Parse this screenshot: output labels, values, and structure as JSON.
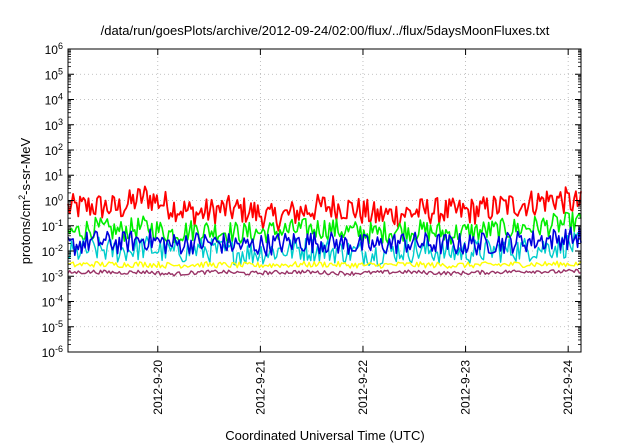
{
  "chart_data": {
    "type": "line",
    "title": "/data/run/goesPlots/archive/2012-09-24/02:00/flux/../flux/5daysMoonFluxes.txt",
    "xlabel": "Coordinated Universal Time (UTC)",
    "ylabel": {
      "prefix": "protons/cm",
      "sup": "2",
      "suffix": "-s-sr-MeV"
    },
    "y_scale": "log",
    "ylim": [
      1e-06,
      1000000.0
    ],
    "y_ticks": [
      {
        "exp": "-6"
      },
      {
        "exp": "-5"
      },
      {
        "exp": "-4"
      },
      {
        "exp": "-3"
      },
      {
        "exp": "-2"
      },
      {
        "exp": "-1"
      },
      {
        "exp": "0"
      },
      {
        "exp": "1"
      },
      {
        "exp": "2"
      },
      {
        "exp": "3"
      },
      {
        "exp": "4"
      },
      {
        "exp": "5"
      },
      {
        "exp": "6"
      }
    ],
    "y_tick_base": "10",
    "xlim": [
      "2012-09-19 03:00",
      "2012-09-24 03:00"
    ],
    "x_ticks": [
      "2012-9-20",
      "2012-9-21",
      "2012-9-22",
      "2012-9-23",
      "2012-9-24"
    ],
    "grid": true,
    "legend": "none",
    "series": [
      {
        "color": "#ff0000",
        "x": [
          "2012-09-19 03:00",
          "2012-09-19 09:00",
          "2012-09-19 15:00",
          "2012-09-19 21:00",
          "2012-09-20 03:00",
          "2012-09-20 09:00",
          "2012-09-20 15:00",
          "2012-09-20 21:00",
          "2012-09-21 03:00",
          "2012-09-21 09:00",
          "2012-09-21 15:00",
          "2012-09-21 21:00",
          "2012-09-22 03:00",
          "2012-09-22 09:00",
          "2012-09-22 15:00",
          "2012-09-22 21:00",
          "2012-09-23 03:00",
          "2012-09-23 09:00",
          "2012-09-23 15:00",
          "2012-09-23 21:00",
          "2012-09-24 03:00"
        ],
        "values": [
          0.5,
          0.6,
          0.5,
          1.5,
          0.6,
          0.3,
          0.45,
          0.4,
          0.2,
          0.35,
          0.6,
          0.5,
          0.25,
          0.3,
          0.4,
          0.35,
          0.4,
          0.6,
          0.8,
          1.2,
          0.7
        ]
      },
      {
        "color": "#00ee00",
        "x": [
          "2012-09-19 03:00",
          "2012-09-19 09:00",
          "2012-09-19 15:00",
          "2012-09-19 21:00",
          "2012-09-20 03:00",
          "2012-09-20 09:00",
          "2012-09-20 15:00",
          "2012-09-20 21:00",
          "2012-09-21 03:00",
          "2012-09-21 09:00",
          "2012-09-21 15:00",
          "2012-09-21 21:00",
          "2012-09-22 03:00",
          "2012-09-22 09:00",
          "2012-09-22 15:00",
          "2012-09-22 21:00",
          "2012-09-23 03:00",
          "2012-09-23 09:00",
          "2012-09-23 15:00",
          "2012-09-23 21:00",
          "2012-09-24 03:00"
        ],
        "values": [
          0.05,
          0.08,
          0.06,
          0.09,
          0.05,
          0.07,
          0.06,
          0.05,
          0.06,
          0.07,
          0.08,
          0.06,
          0.05,
          0.07,
          0.06,
          0.05,
          0.06,
          0.07,
          0.09,
          0.11,
          0.14
        ]
      },
      {
        "color": "#00cccc",
        "x": [
          "2012-09-19 03:00",
          "2012-09-19 09:00",
          "2012-09-19 15:00",
          "2012-09-19 21:00",
          "2012-09-20 03:00",
          "2012-09-20 09:00",
          "2012-09-20 15:00",
          "2012-09-20 21:00",
          "2012-09-21 03:00",
          "2012-09-21 09:00",
          "2012-09-21 15:00",
          "2012-09-21 21:00",
          "2012-09-22 03:00",
          "2012-09-22 09:00",
          "2012-09-22 15:00",
          "2012-09-22 21:00",
          "2012-09-23 03:00",
          "2012-09-23 09:00",
          "2012-09-23 15:00",
          "2012-09-23 21:00",
          "2012-09-24 03:00"
        ],
        "values": [
          0.008,
          0.012,
          0.01,
          0.014,
          0.009,
          0.011,
          0.01,
          0.008,
          0.01,
          0.012,
          0.011,
          0.009,
          0.008,
          0.011,
          0.01,
          0.009,
          0.01,
          0.011,
          0.012,
          0.015,
          0.018
        ]
      },
      {
        "color": "#0000dd",
        "x": [
          "2012-09-19 03:00",
          "2012-09-19 09:00",
          "2012-09-19 15:00",
          "2012-09-19 21:00",
          "2012-09-20 03:00",
          "2012-09-20 09:00",
          "2012-09-20 15:00",
          "2012-09-20 21:00",
          "2012-09-21 03:00",
          "2012-09-21 09:00",
          "2012-09-21 15:00",
          "2012-09-21 21:00",
          "2012-09-22 03:00",
          "2012-09-22 09:00",
          "2012-09-22 15:00",
          "2012-09-22 21:00",
          "2012-09-23 03:00",
          "2012-09-23 09:00",
          "2012-09-23 15:00",
          "2012-09-23 21:00",
          "2012-09-24 03:00"
        ],
        "values": [
          0.015,
          0.025,
          0.02,
          0.03,
          0.018,
          0.022,
          0.02,
          0.016,
          0.019,
          0.024,
          0.022,
          0.018,
          0.016,
          0.022,
          0.02,
          0.018,
          0.019,
          0.022,
          0.025,
          0.03,
          0.035
        ]
      },
      {
        "color": "#ffff00",
        "x": [
          "2012-09-19 03:00",
          "2012-09-19 09:00",
          "2012-09-19 15:00",
          "2012-09-19 21:00",
          "2012-09-20 03:00",
          "2012-09-20 09:00",
          "2012-09-20 15:00",
          "2012-09-20 21:00",
          "2012-09-21 03:00",
          "2012-09-21 09:00",
          "2012-09-21 15:00",
          "2012-09-21 21:00",
          "2012-09-22 03:00",
          "2012-09-22 09:00",
          "2012-09-22 15:00",
          "2012-09-22 21:00",
          "2012-09-23 03:00",
          "2012-09-23 09:00",
          "2012-09-23 15:00",
          "2012-09-23 21:00",
          "2012-09-24 03:00"
        ],
        "values": [
          0.0028,
          0.003,
          0.0029,
          0.003,
          0.0027,
          0.0029,
          0.0028,
          0.0027,
          0.0028,
          0.0029,
          0.003,
          0.0028,
          0.0027,
          0.0029,
          0.0028,
          0.0027,
          0.0028,
          0.0029,
          0.003,
          0.003,
          0.0031
        ]
      },
      {
        "color": "#993366",
        "x": [
          "2012-09-19 03:00",
          "2012-09-19 09:00",
          "2012-09-19 15:00",
          "2012-09-19 21:00",
          "2012-09-20 03:00",
          "2012-09-20 09:00",
          "2012-09-20 15:00",
          "2012-09-20 21:00",
          "2012-09-21 03:00",
          "2012-09-21 09:00",
          "2012-09-21 15:00",
          "2012-09-21 21:00",
          "2012-09-22 03:00",
          "2012-09-22 09:00",
          "2012-09-22 15:00",
          "2012-09-22 21:00",
          "2012-09-23 03:00",
          "2012-09-23 09:00",
          "2012-09-23 15:00",
          "2012-09-23 21:00",
          "2012-09-24 03:00"
        ],
        "values": [
          0.0014,
          0.0015,
          0.0014,
          0.0015,
          0.0012,
          0.0014,
          0.0015,
          0.0013,
          0.0014,
          0.0015,
          0.0014,
          0.0013,
          0.0014,
          0.0015,
          0.0014,
          0.0013,
          0.0014,
          0.0015,
          0.0016,
          0.0015,
          0.0016
        ]
      }
    ]
  }
}
